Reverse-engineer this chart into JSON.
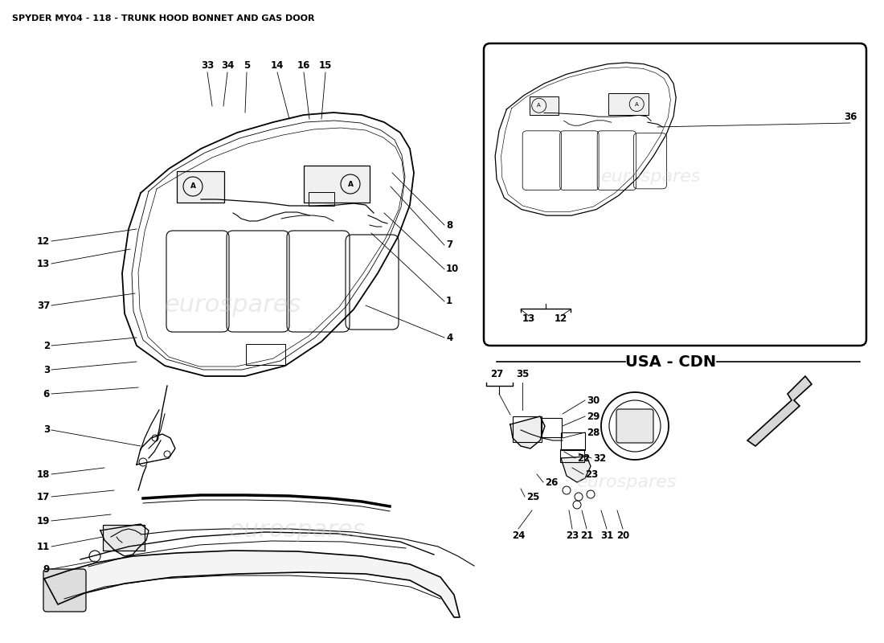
{
  "title": "SPYDER MY04 - 118 - TRUNK HOOD BONNET AND GAS DOOR",
  "background_color": "#ffffff",
  "title_fontsize": 8,
  "label_fontsize": 8.5,
  "usa_cdn_text": "USA - CDN",
  "watermark_text": "eurospares"
}
